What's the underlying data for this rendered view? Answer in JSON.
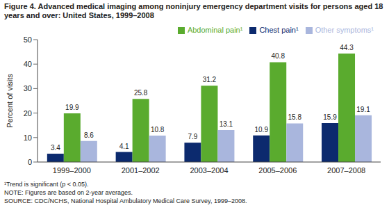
{
  "chart_data": {
    "type": "bar",
    "title": "Figure 4. Advanced medical imaging among noninjury emergency department visits for persons aged 18 years and over: United States, 1999–2008",
    "y_label": "Percent of visits",
    "categories": [
      "1999–2000",
      "2001–2002",
      "2003–2004",
      "2005–2006",
      "2007–2008"
    ],
    "series": [
      {
        "name": "Chest pain¹",
        "color": "#0c2a6e",
        "values": [
          3.4,
          4.1,
          7.9,
          10.9,
          15.9
        ]
      },
      {
        "name": "Abdominal pain¹",
        "color": "#5aab2e",
        "values": [
          19.9,
          25.8,
          31.2,
          40.8,
          44.3
        ]
      },
      {
        "name": "Other symptoms¹",
        "color": "#a9b6dd",
        "values": [
          8.6,
          10.8,
          13.1,
          15.8,
          19.1
        ]
      }
    ],
    "ylim": [
      0,
      50
    ],
    "yticks": [
      0,
      10,
      20,
      30,
      40,
      50
    ],
    "grid": false,
    "legend": "top-right",
    "data_labels": true,
    "footnotes": [
      "¹Trend is significant (p < 0.05).",
      "NOTE: Figures are based on 2-year averages.",
      "SOURCE: CDC/NCHS, National Hospital Ambulatory Medical Care Survey, 1999–2008."
    ]
  }
}
